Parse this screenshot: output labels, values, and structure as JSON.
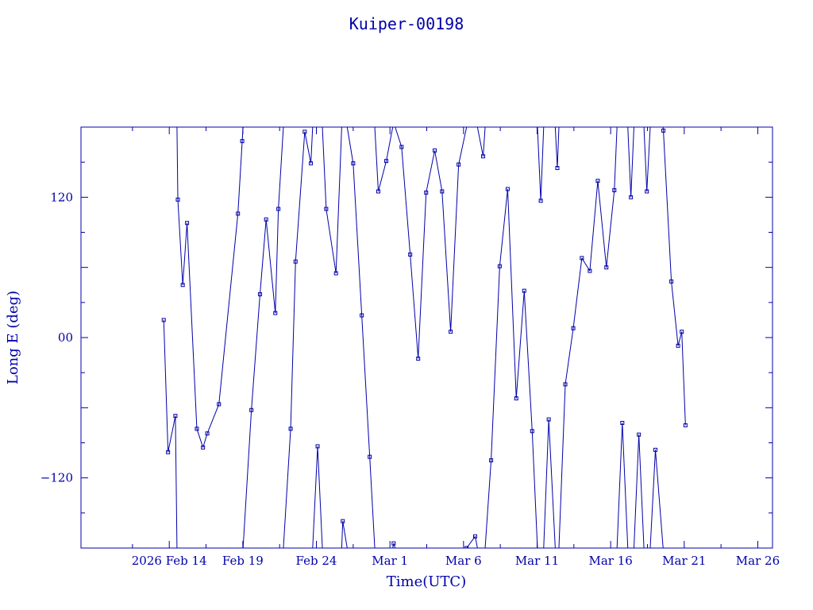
{
  "chart_data": {
    "type": "line",
    "title": "Kuiper-00198",
    "xlabel": "Time(UTC)",
    "ylabel": "Long E (deg)",
    "xlim": [
      "2026-02-08",
      "2026-03-27"
    ],
    "ylim": [
      -180,
      180
    ],
    "x_ticks": [
      {
        "date": "2026-02-14",
        "label": "2026 Feb 14"
      },
      {
        "date": "2026-02-19",
        "label": "Feb 19"
      },
      {
        "date": "2026-02-24",
        "label": "Feb 24"
      },
      {
        "date": "2026-03-01",
        "label": "Mar  1"
      },
      {
        "date": "2026-03-06",
        "label": "Mar  6"
      },
      {
        "date": "2026-03-11",
        "label": "Mar 11"
      },
      {
        "date": "2026-03-16",
        "label": "Mar 16"
      },
      {
        "date": "2026-03-21",
        "label": "Mar 21"
      },
      {
        "date": "2026-03-26",
        "label": "Mar 26"
      }
    ],
    "y_ticks": [
      {
        "value": -120,
        "label": "−120"
      },
      {
        "value": 0,
        "label": "00"
      },
      {
        "value": 120,
        "label": "120"
      }
    ],
    "grid": false,
    "legend": "none",
    "color": "#0000aa",
    "marker": "square",
    "series": [
      {
        "x": [
          "2026-02-13T15:00",
          "2026-02-13T22:00",
          "2026-02-14T10:00",
          "2026-02-14T14:00",
          "2026-02-14T22:00",
          "2026-02-15T05:00",
          "2026-02-15T21:00",
          "2026-02-16T07:00",
          "2026-02-16T14:00",
          "2026-02-17T09:00",
          "2026-02-18T16:00",
          "2026-02-18T23:00",
          "2026-02-19T14:00",
          "2026-02-20T04:00",
          "2026-02-20T14:00",
          "2026-02-21T05:00",
          "2026-02-21T10:00",
          "2026-02-22T06:00",
          "2026-02-22T14:00",
          "2026-02-23T05:00",
          "2026-02-23T15:00",
          "2026-02-24T02:00",
          "2026-02-24T16:00",
          "2026-02-25T08:00",
          "2026-02-25T19:00",
          "2026-02-26T12:00",
          "2026-02-27T02:00",
          "2026-02-27T15:00",
          "2026-02-28T05:00",
          "2026-02-28T18:00",
          "2026-03-01T06:00",
          "2026-03-01T19:00",
          "2026-03-02T09:00",
          "2026-03-02T22:00",
          "2026-03-03T11:00",
          "2026-03-04T01:00",
          "2026-03-04T13:00",
          "2026-03-05T03:00",
          "2026-03-05T16:00",
          "2026-03-06T05:00",
          "2026-03-06T19:00",
          "2026-03-07T08:00",
          "2026-03-07T21:00",
          "2026-03-08T11:00",
          "2026-03-09T00:00",
          "2026-03-09T14:00",
          "2026-03-10T03:00",
          "2026-03-10T16:00",
          "2026-03-11T06:00",
          "2026-03-11T19:00",
          "2026-03-12T09:00",
          "2026-03-12T22:00",
          "2026-03-13T11:00",
          "2026-03-14T01:00",
          "2026-03-14T14:00",
          "2026-03-15T03:00",
          "2026-03-15T17:00",
          "2026-03-16T06:00",
          "2026-03-16T19:00",
          "2026-03-17T09:00",
          "2026-03-17T22:00",
          "2026-03-18T11:00",
          "2026-03-19T01:00",
          "2026-03-19T14:00",
          "2026-03-20T03:00",
          "2026-03-20T14:00",
          "2026-03-20T20:00",
          "2026-03-21T02:00"
        ],
        "y": [
          15,
          -98,
          -67,
          118,
          45,
          98,
          -78,
          -94,
          -82,
          -57,
          106,
          168,
          -62,
          37,
          101,
          21,
          110,
          -78,
          65,
          176,
          149,
          -93,
          110,
          55,
          -157,
          149,
          19,
          -102,
          125,
          151,
          -176,
          163,
          71,
          -18,
          124,
          160,
          125,
          5,
          148,
          -180,
          -170,
          155,
          -105,
          61,
          127,
          -52,
          40,
          -80,
          117,
          -70,
          145,
          -40,
          8,
          68,
          57,
          134,
          60,
          126,
          -73,
          120,
          -83,
          125,
          -96,
          177,
          48,
          -7,
          5,
          -75
        ]
      }
    ]
  }
}
